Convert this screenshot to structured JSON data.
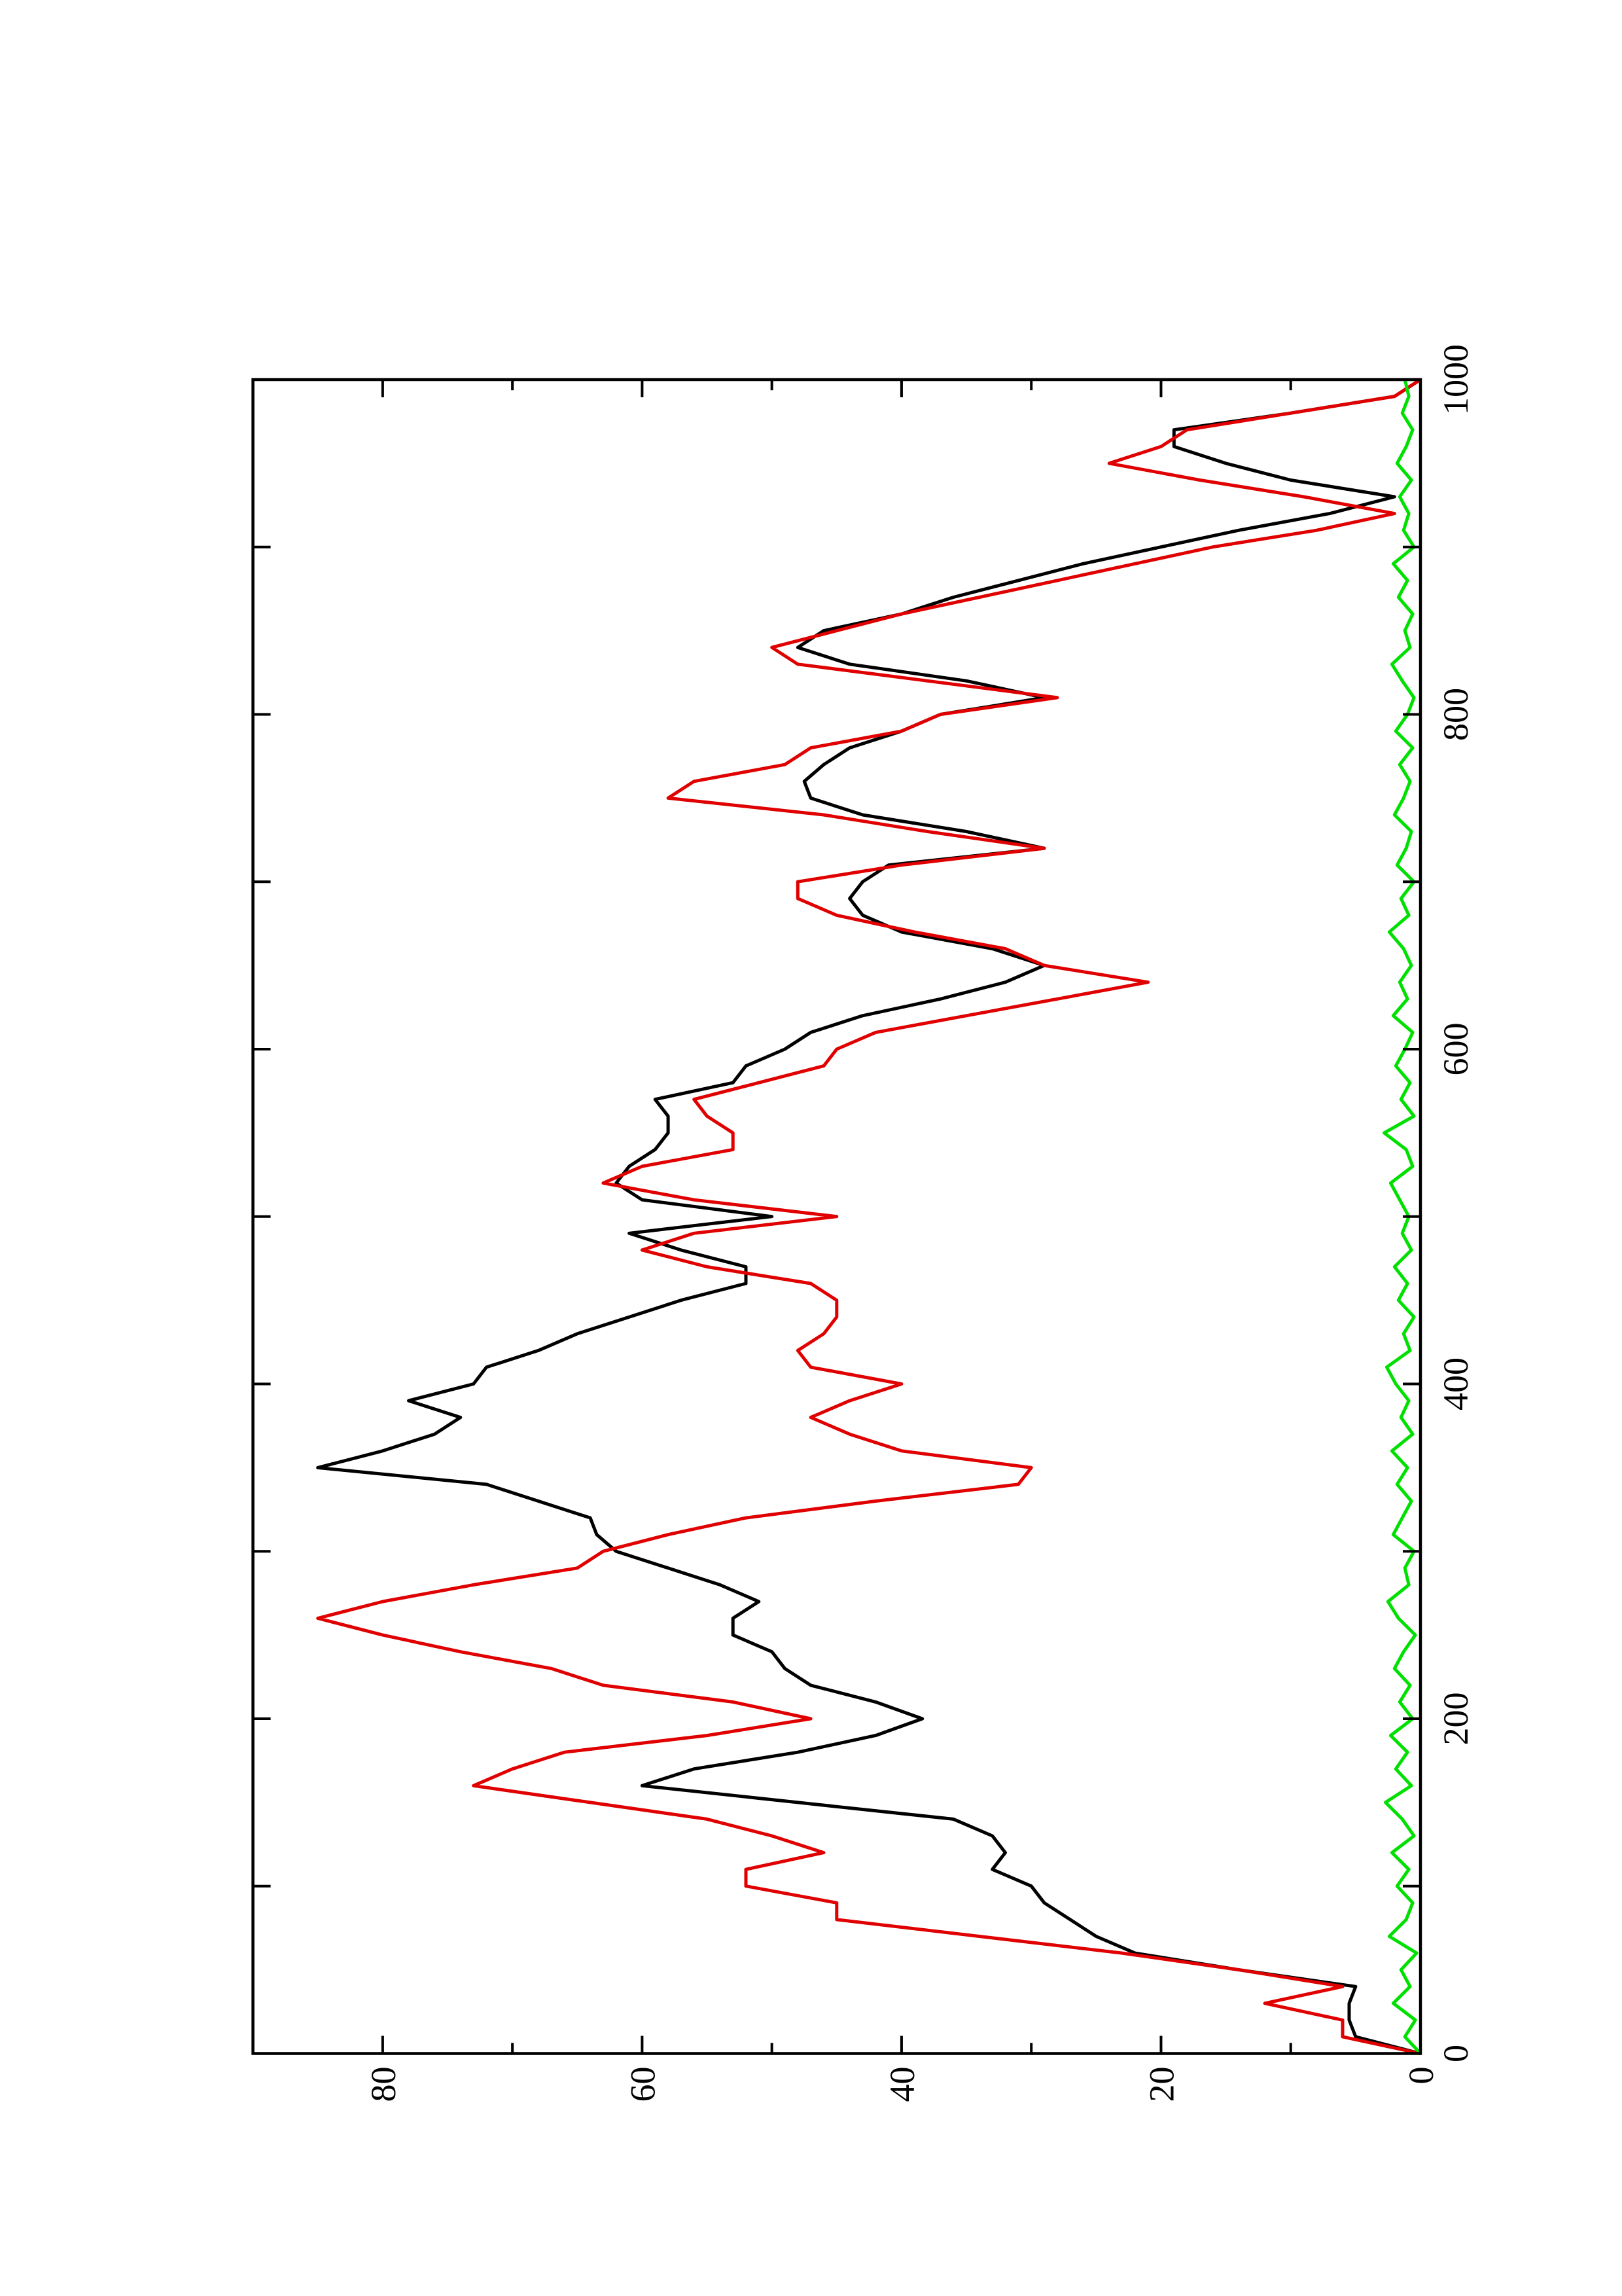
{
  "chart_data": {
    "type": "line",
    "x": [
      0,
      10,
      20,
      30,
      40,
      50,
      60,
      70,
      80,
      90,
      100,
      110,
      120,
      130,
      140,
      150,
      160,
      170,
      180,
      190,
      200,
      210,
      220,
      230,
      240,
      250,
      260,
      270,
      280,
      290,
      300,
      310,
      320,
      330,
      340,
      350,
      360,
      370,
      380,
      390,
      400,
      410,
      420,
      430,
      440,
      450,
      460,
      470,
      480,
      490,
      500,
      510,
      520,
      530,
      540,
      550,
      560,
      570,
      580,
      590,
      600,
      610,
      620,
      630,
      640,
      650,
      660,
      670,
      680,
      690,
      700,
      710,
      720,
      730,
      740,
      750,
      760,
      770,
      780,
      790,
      800,
      810,
      820,
      830,
      840,
      850,
      860,
      870,
      880,
      890,
      900,
      910,
      920,
      930,
      940,
      950,
      960,
      970,
      980,
      990,
      1000
    ],
    "series": [
      {
        "color": "#000000",
        "values": [
          0,
          5,
          5.5,
          5.5,
          5,
          14,
          22,
          25,
          27,
          29,
          30,
          33,
          32,
          33,
          36,
          48,
          60,
          56,
          48,
          42,
          38.4,
          42,
          47,
          49,
          50,
          53,
          53,
          51,
          54,
          58,
          62,
          63.5,
          64,
          68,
          72,
          85,
          80,
          76,
          74,
          78,
          73,
          72,
          68,
          65,
          61,
          57,
          52,
          52,
          57,
          61,
          50,
          60,
          62,
          61,
          59,
          58,
          58,
          59,
          53,
          52,
          49,
          47,
          43,
          37,
          32,
          29,
          33,
          40,
          43,
          44,
          43,
          41,
          29,
          35,
          43,
          47,
          47.5,
          46,
          44,
          40,
          37,
          29,
          35,
          44,
          48,
          46,
          40,
          36,
          31,
          26,
          20,
          14,
          7,
          2,
          10,
          15,
          19,
          19,
          10,
          2,
          0
        ]
      },
      {
        "color": "#e00000",
        "values": [
          0,
          6,
          6,
          12,
          6,
          14,
          23,
          34,
          45,
          45,
          52,
          52,
          46,
          50,
          55,
          64,
          73,
          70,
          66,
          55,
          47,
          53,
          63,
          67,
          74,
          80,
          85,
          80,
          73,
          65,
          63,
          58,
          52,
          42,
          31,
          30,
          40,
          44,
          47,
          44,
          40,
          47,
          48,
          46,
          45,
          45,
          47,
          55,
          60,
          56,
          45,
          56,
          63,
          60,
          53,
          53,
          55,
          56,
          51,
          46,
          45,
          42,
          35,
          28,
          21,
          29,
          32,
          39,
          45,
          48,
          48,
          40,
          29,
          38,
          46,
          58,
          56,
          49,
          47,
          40,
          37,
          28,
          38,
          48,
          50,
          45,
          40,
          34,
          28,
          22,
          16,
          8,
          2,
          9,
          17,
          24,
          20,
          18,
          10,
          2,
          0
        ]
      },
      {
        "color": "#00e000",
        "values": [
          0,
          1.2,
          0.4,
          2.1,
          0.8,
          1.5,
          0.3,
          2.4,
          1.1,
          0.6,
          1.8,
          0.9,
          2.2,
          0.5,
          1.4,
          2.7,
          0.7,
          1.9,
          1.0,
          2.3,
          0.6,
          1.6,
          0.8,
          2.0,
          1.3,
          0.4,
          1.7,
          2.5,
          0.9,
          1.2,
          0.5,
          2.1,
          1.4,
          0.7,
          1.8,
          1.0,
          2.2,
          0.6,
          1.5,
          0.9,
          1.9,
          2.6,
          0.8,
          1.3,
          0.5,
          1.7,
          1.0,
          2.0,
          0.7,
          1.4,
          0.9,
          1.6,
          2.3,
          0.6,
          1.1,
          2.8,
          0.5,
          1.5,
          0.8,
          1.9,
          1.2,
          0.6,
          2.1,
          1.0,
          1.6,
          0.7,
          1.3,
          2.4,
          0.9,
          1.5,
          0.5,
          1.8,
          1.1,
          0.7,
          2.0,
          1.3,
          0.8,
          1.6,
          0.6,
          1.9,
          1.0,
          0.5,
          1.4,
          2.2,
          0.8,
          1.2,
          0.6,
          1.7,
          1.0,
          2.1,
          0.5,
          1.3,
          0.9,
          1.6,
          0.7,
          1.8,
          1.1,
          0.6,
          1.4,
          0.9,
          1.2
        ]
      }
    ],
    "xlim": [
      0,
      1000
    ],
    "xticks": [
      0,
      200,
      400,
      600,
      800,
      1000
    ],
    "xminor": [
      100,
      300,
      500,
      700,
      900
    ],
    "ylim": [
      0,
      90
    ],
    "yticks": [
      0,
      20,
      40,
      60,
      80
    ],
    "yminor": [
      10,
      30,
      50,
      70
    ],
    "rotated": true
  }
}
